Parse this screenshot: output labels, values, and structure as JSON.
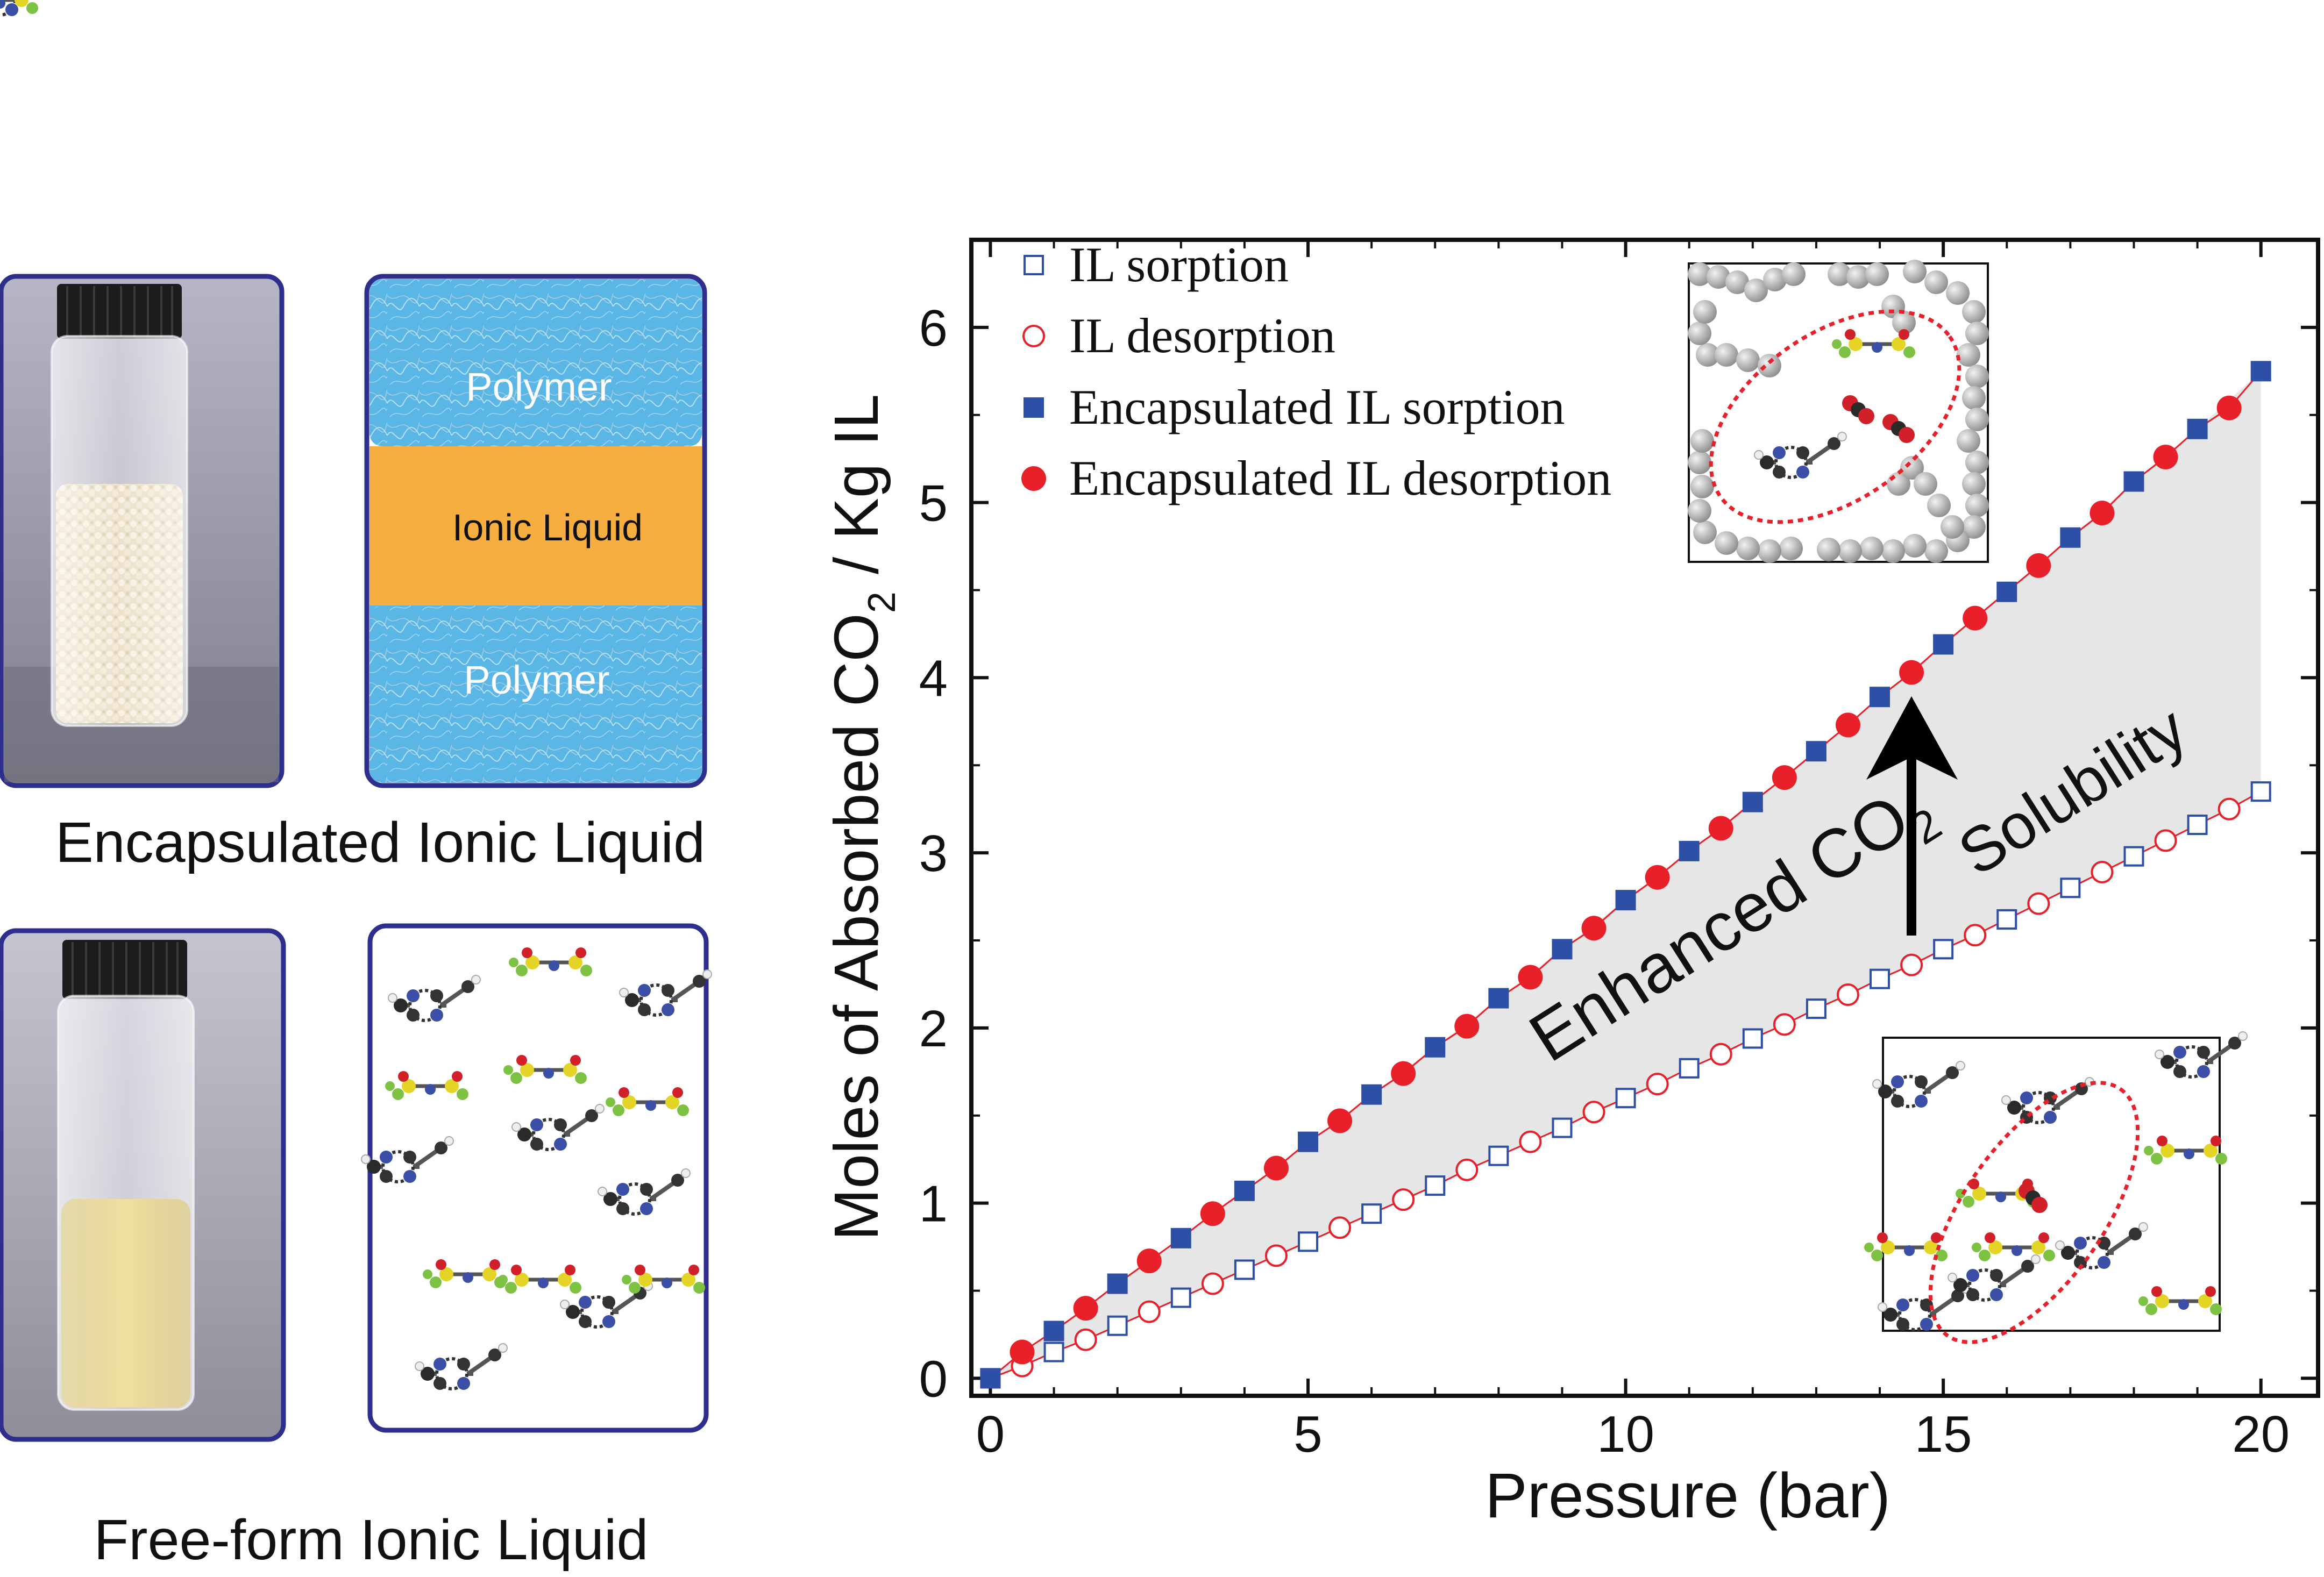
{
  "panels": {
    "encapsulated_caption": "Encapsulated Ionic Liquid",
    "freeform_caption": "Free-form Ionic Liquid",
    "schematic_top_label": "Polymer",
    "schematic_mid_label": "Ionic Liquid",
    "schematic_bottom_label": "Polymer"
  },
  "colors": {
    "panel_border": "#2e2f8c",
    "polymer_blue": "#5ab6e4",
    "ionic_liquid_orange": "#f7ae41",
    "series_blue": "#2d4fa5",
    "series_red": "#e8202a",
    "fill_gray": "#e6e6e6",
    "ellipse_red": "#e8202a",
    "liquid_yellow": "#e6d07a"
  },
  "icons": {
    "vial_encapsulated": "vial-with-white-beads",
    "vial_freeform": "vial-with-yellow-liquid",
    "ion_structures": "ball-and-stick-molecules",
    "polymer_snapshot": "gray-polymer-chains",
    "arrow": "up-arrow"
  },
  "annotations": {
    "enhanced_main": "Enhanced CO",
    "enhanced_sub": "2",
    "solubility": "Solubility"
  },
  "chart_data": {
    "type": "scatter",
    "title": "",
    "xlabel": "Pressure (bar)",
    "ylabel_main": "Moles of Absorbed CO",
    "ylabel_sub": "2",
    "ylabel_tail": " / Kg IL",
    "xlim": [
      -0.3,
      20.9
    ],
    "ylim": [
      -0.1,
      6.5
    ],
    "xticks": [
      0,
      5,
      10,
      15,
      20
    ],
    "yticks": [
      0,
      1,
      2,
      3,
      4,
      5,
      6
    ],
    "grid": false,
    "legend_position": "top-left",
    "series": [
      {
        "name": "IL sorption",
        "marker": "open-square",
        "color": "#2d4fa5",
        "x": [
          0,
          1,
          2,
          3,
          4,
          5,
          6,
          7,
          8,
          9,
          10,
          11,
          12,
          13,
          14,
          15,
          16,
          17,
          18,
          19,
          20
        ],
        "y": [
          0,
          0.15,
          0.3,
          0.46,
          0.62,
          0.78,
          0.94,
          1.1,
          1.27,
          1.43,
          1.6,
          1.77,
          1.94,
          2.11,
          2.28,
          2.45,
          2.62,
          2.8,
          2.98,
          3.16,
          3.35
        ]
      },
      {
        "name": "IL desorption",
        "marker": "open-circle",
        "color": "#e8202a",
        "x": [
          0.5,
          1.5,
          2.5,
          3.5,
          4.5,
          5.5,
          6.5,
          7.5,
          8.5,
          9.5,
          10.5,
          11.5,
          12.5,
          13.5,
          14.5,
          15.5,
          16.5,
          17.5,
          18.5,
          19.5
        ],
        "y": [
          0.07,
          0.22,
          0.38,
          0.54,
          0.7,
          0.86,
          1.02,
          1.19,
          1.35,
          1.52,
          1.68,
          1.85,
          2.02,
          2.19,
          2.36,
          2.53,
          2.71,
          2.89,
          3.07,
          3.25
        ]
      },
      {
        "name": "Encapsulated IL sorption",
        "marker": "filled-square",
        "color": "#2d4fa5",
        "x": [
          0,
          1,
          2,
          3,
          4,
          5,
          6,
          7,
          8,
          9,
          10,
          11,
          12,
          13,
          14,
          15,
          16,
          17,
          18,
          19,
          20
        ],
        "y": [
          0,
          0.27,
          0.54,
          0.8,
          1.07,
          1.35,
          1.62,
          1.89,
          2.17,
          2.45,
          2.73,
          3.01,
          3.29,
          3.58,
          3.89,
          4.19,
          4.49,
          4.8,
          5.12,
          5.42,
          5.75
        ]
      },
      {
        "name": "Encapsulated IL desorption",
        "marker": "filled-circle",
        "color": "#e8202a",
        "x": [
          0.5,
          1.5,
          2.5,
          3.5,
          4.5,
          5.5,
          6.5,
          7.5,
          8.5,
          9.5,
          10.5,
          11.5,
          12.5,
          13.5,
          14.5,
          15.5,
          16.5,
          17.5,
          18.5,
          19.5
        ],
        "y": [
          0.15,
          0.4,
          0.67,
          0.94,
          1.2,
          1.47,
          1.74,
          2.01,
          2.29,
          2.57,
          2.86,
          3.14,
          3.43,
          3.73,
          4.03,
          4.34,
          4.64,
          4.94,
          5.26,
          5.54
        ]
      }
    ]
  }
}
